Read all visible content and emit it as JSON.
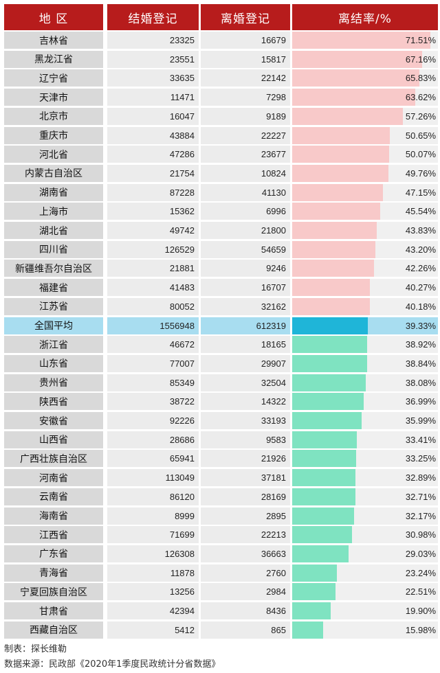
{
  "colors": {
    "header_bg": "#b71c1c",
    "bar_above_avg": "#f8c9c9",
    "bar_avg": "#1fb5d8",
    "bar_below_avg": "#7fe3c1",
    "avg_row_bg": "#a8ddf0"
  },
  "chart_data": {
    "type": "table",
    "columns": [
      "地 区",
      "结婚登记",
      "离婚登记",
      "离结率/%"
    ],
    "rows": [
      {
        "region": "吉林省",
        "marriages": "23325",
        "divorces": "16679",
        "ratio": "71.51%",
        "ratio_value": 71.51
      },
      {
        "region": "黑龙江省",
        "marriages": "23551",
        "divorces": "15817",
        "ratio": "67.16%",
        "ratio_value": 67.16
      },
      {
        "region": "辽宁省",
        "marriages": "33635",
        "divorces": "22142",
        "ratio": "65.83%",
        "ratio_value": 65.83
      },
      {
        "region": "天津市",
        "marriages": "11471",
        "divorces": "7298",
        "ratio": "63.62%",
        "ratio_value": 63.62
      },
      {
        "region": "北京市",
        "marriages": "16047",
        "divorces": "9189",
        "ratio": "57.26%",
        "ratio_value": 57.26
      },
      {
        "region": "重庆市",
        "marriages": "43884",
        "divorces": "22227",
        "ratio": "50.65%",
        "ratio_value": 50.65
      },
      {
        "region": "河北省",
        "marriages": "47286",
        "divorces": "23677",
        "ratio": "50.07%",
        "ratio_value": 50.07
      },
      {
        "region": "内蒙古自治区",
        "marriages": "21754",
        "divorces": "10824",
        "ratio": "49.76%",
        "ratio_value": 49.76
      },
      {
        "region": "湖南省",
        "marriages": "87228",
        "divorces": "41130",
        "ratio": "47.15%",
        "ratio_value": 47.15
      },
      {
        "region": "上海市",
        "marriages": "15362",
        "divorces": "6996",
        "ratio": "45.54%",
        "ratio_value": 45.54
      },
      {
        "region": "湖北省",
        "marriages": "49742",
        "divorces": "21800",
        "ratio": "43.83%",
        "ratio_value": 43.83
      },
      {
        "region": "四川省",
        "marriages": "126529",
        "divorces": "54659",
        "ratio": "43.20%",
        "ratio_value": 43.2
      },
      {
        "region": "新疆维吾尔自治区",
        "marriages": "21881",
        "divorces": "9246",
        "ratio": "42.26%",
        "ratio_value": 42.26
      },
      {
        "region": "福建省",
        "marriages": "41483",
        "divorces": "16707",
        "ratio": "40.27%",
        "ratio_value": 40.27
      },
      {
        "region": "江苏省",
        "marriages": "80052",
        "divorces": "32162",
        "ratio": "40.18%",
        "ratio_value": 40.18
      },
      {
        "region": "全国平均",
        "marriages": "1556948",
        "divorces": "612319",
        "ratio": "39.33%",
        "ratio_value": 39.33,
        "is_average": true
      },
      {
        "region": "浙江省",
        "marriages": "46672",
        "divorces": "18165",
        "ratio": "38.92%",
        "ratio_value": 38.92
      },
      {
        "region": "山东省",
        "marriages": "77007",
        "divorces": "29907",
        "ratio": "38.84%",
        "ratio_value": 38.84
      },
      {
        "region": "贵州省",
        "marriages": "85349",
        "divorces": "32504",
        "ratio": "38.08%",
        "ratio_value": 38.08
      },
      {
        "region": "陕西省",
        "marriages": "38722",
        "divorces": "14322",
        "ratio": "36.99%",
        "ratio_value": 36.99
      },
      {
        "region": "安徽省",
        "marriages": "92226",
        "divorces": "33193",
        "ratio": "35.99%",
        "ratio_value": 35.99
      },
      {
        "region": "山西省",
        "marriages": "28686",
        "divorces": "9583",
        "ratio": "33.41%",
        "ratio_value": 33.41
      },
      {
        "region": "广西壮族自治区",
        "marriages": "65941",
        "divorces": "21926",
        "ratio": "33.25%",
        "ratio_value": 33.25
      },
      {
        "region": "河南省",
        "marriages": "113049",
        "divorces": "37181",
        "ratio": "32.89%",
        "ratio_value": 32.89
      },
      {
        "region": "云南省",
        "marriages": "86120",
        "divorces": "28169",
        "ratio": "32.71%",
        "ratio_value": 32.71
      },
      {
        "region": "海南省",
        "marriages": "8999",
        "divorces": "2895",
        "ratio": "32.17%",
        "ratio_value": 32.17
      },
      {
        "region": "江西省",
        "marriages": "71699",
        "divorces": "22213",
        "ratio": "30.98%",
        "ratio_value": 30.98
      },
      {
        "region": "广东省",
        "marriages": "126308",
        "divorces": "36663",
        "ratio": "29.03%",
        "ratio_value": 29.03
      },
      {
        "region": "青海省",
        "marriages": "11878",
        "divorces": "2760",
        "ratio": "23.24%",
        "ratio_value": 23.24
      },
      {
        "region": "宁夏回族自治区",
        "marriages": "13256",
        "divorces": "2984",
        "ratio": "22.51%",
        "ratio_value": 22.51
      },
      {
        "region": "甘肃省",
        "marriages": "42394",
        "divorces": "8436",
        "ratio": "19.90%",
        "ratio_value": 19.9
      },
      {
        "region": "西藏自治区",
        "marriages": "5412",
        "divorces": "865",
        "ratio": "15.98%",
        "ratio_value": 15.98
      }
    ]
  },
  "footer": {
    "maker": "制表：探长维勒",
    "source": "数据来源：民政部《2020年1季度民政统计分省数据》"
  }
}
